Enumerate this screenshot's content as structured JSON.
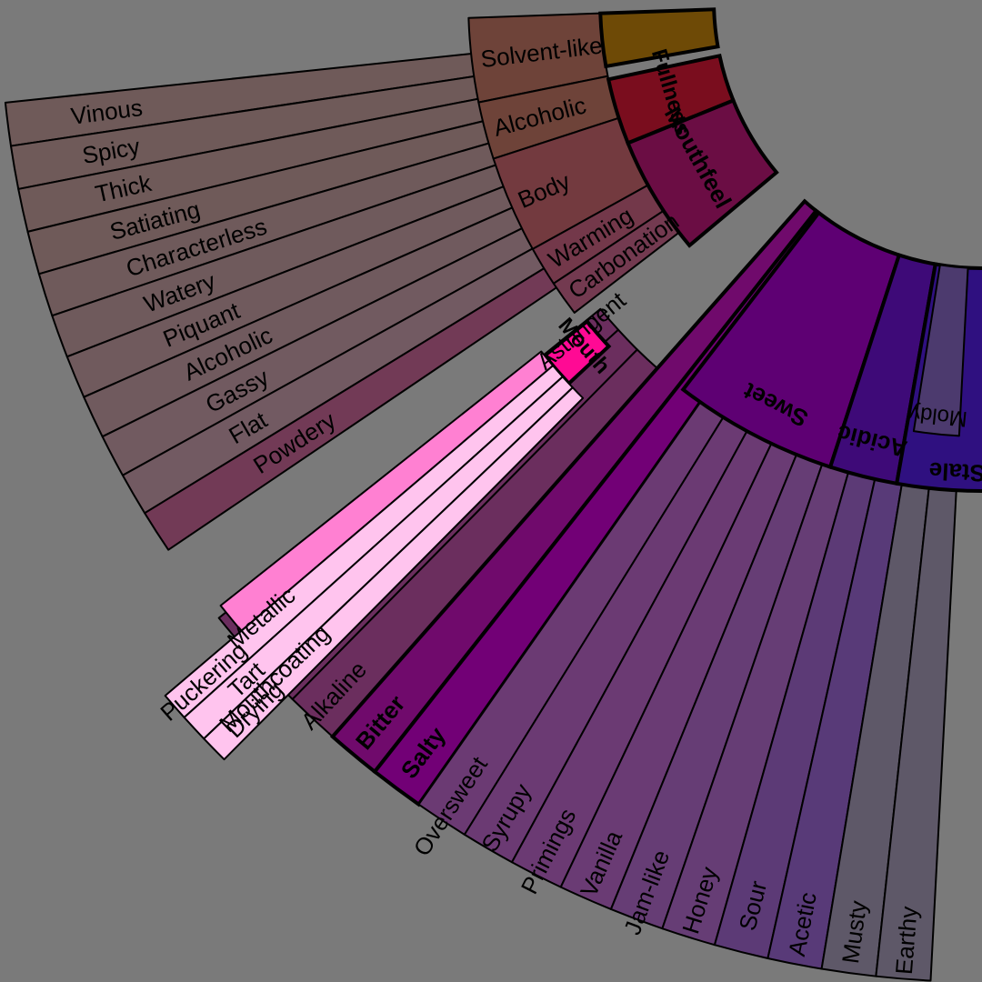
{
  "wheel": {
    "background": "#7a7a7a",
    "left_group": [
      {
        "label": "Vinous",
        "color": "#6f5a59"
      },
      {
        "label": "Spicy",
        "color": "#6f5a59"
      },
      {
        "label": "Thick",
        "color": "#6f5a59"
      },
      {
        "label": "Satiating",
        "color": "#6f5a59"
      },
      {
        "label": "Characterless",
        "color": "#6f5a5b"
      },
      {
        "label": "Watery",
        "color": "#6f5a5c"
      },
      {
        "label": "Piquant",
        "color": "#705a5d"
      },
      {
        "label": "Alcoholic",
        "color": "#705a5e"
      },
      {
        "label": "Gassy",
        "color": "#715a60"
      },
      {
        "label": "Flat",
        "color": "#725a62"
      },
      {
        "label": "Powdery",
        "color": "#723a56"
      }
    ],
    "warming_group": [
      {
        "label": "Solvent-like",
        "color": "#6e4339"
      },
      {
        "label": "Alcoholic",
        "color": "#6e4339"
      },
      {
        "label": "Body",
        "color": "#733a3f"
      },
      {
        "label": "Warming",
        "color": "#73384a"
      },
      {
        "label": "Carbonation",
        "color": "#733a50"
      }
    ],
    "mid_ring": [
      {
        "label": "",
        "color": "#6e4a06"
      },
      {
        "label": "Fullness",
        "color": "#7a0d1e"
      },
      {
        "label": "Mouthfeel",
        "color": "#6b0d44"
      }
    ],
    "exploded": {
      "mid": {
        "label": "Mouth",
        "color": "#ff0a94"
      },
      "outer_top": {
        "label": "Astringent",
        "color": "#ff80d2"
      },
      "outer_bottom": [
        {
          "label": "Puckering",
          "color": "#ffc4ee"
        },
        {
          "label": "Tart",
          "color": "#ffc4ee"
        },
        {
          "label": "Drying",
          "color": "#ffc4ee"
        }
      ]
    },
    "taste_outer": [
      {
        "label": "Metallic",
        "color": "#6b2e5e"
      },
      {
        "label": "Mouthcoating",
        "color": "#6b2e5e"
      },
      {
        "label": "Alkaline",
        "color": "#6b2e5e"
      },
      {
        "label": "Bitter",
        "color": "#700a6c"
      },
      {
        "label": "Salty",
        "color": "#720076"
      },
      {
        "label": "Oversweet",
        "color": "#6b3a73"
      },
      {
        "label": "Syrupy",
        "color": "#6b3a73"
      },
      {
        "label": "Primings",
        "color": "#6b3a73"
      },
      {
        "label": "Vanilla",
        "color": "#6a3b74"
      },
      {
        "label": "Jam-like",
        "color": "#663d75"
      },
      {
        "label": "Honey",
        "color": "#663d75"
      },
      {
        "label": "Sour",
        "color": "#5c3a76"
      },
      {
        "label": "Acetic",
        "color": "#583a78"
      },
      {
        "label": "Musty",
        "color": "#5e5868"
      },
      {
        "label": "Earthy",
        "color": "#5e5868"
      }
    ],
    "taste_mid": [
      {
        "label": "Sweet",
        "color": "#5e0073"
      },
      {
        "label": "Acidic",
        "color": "#3e0a78"
      },
      {
        "label": "Stale",
        "color": "#2f1080"
      }
    ],
    "stale_outer": [
      {
        "label": "Moldy",
        "color": "#4c3a6e"
      }
    ]
  }
}
